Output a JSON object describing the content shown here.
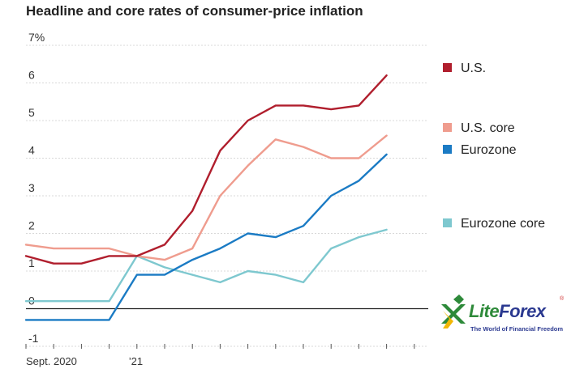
{
  "chart_data": {
    "type": "line",
    "title": "Headline and core rates of consumer-price inflation",
    "y_ticks": [
      "7%",
      "6",
      "5",
      "4",
      "3",
      "2",
      "1",
      "0",
      "-1"
    ],
    "y_tick_values": [
      7,
      6,
      5,
      4,
      3,
      2,
      1,
      0,
      -1
    ],
    "ylim": [
      -1,
      7
    ],
    "x_tick_labels": [
      {
        "label": "Sept. 2020",
        "index": 0
      },
      {
        "label": "’21",
        "index": 4
      }
    ],
    "x_count": 15,
    "grid": true,
    "legend_placement": "right",
    "series": [
      {
        "name": "U.S.",
        "color": "#b01e2d",
        "values": [
          1.4,
          1.2,
          1.2,
          1.4,
          1.4,
          1.7,
          2.6,
          4.2,
          5.0,
          5.4,
          5.4,
          5.3,
          5.4,
          6.2
        ]
      },
      {
        "name": "U.S. core",
        "color": "#ef9c8e",
        "values": [
          1.7,
          1.6,
          1.6,
          1.6,
          1.4,
          1.3,
          1.6,
          3.0,
          3.8,
          4.5,
          4.3,
          4.0,
          4.0,
          4.6
        ]
      },
      {
        "name": "Eurozone",
        "color": "#1b7bc4",
        "values": [
          -0.3,
          -0.3,
          -0.3,
          -0.3,
          0.9,
          0.9,
          1.3,
          1.6,
          2.0,
          1.9,
          2.2,
          3.0,
          3.4,
          4.1
        ]
      },
      {
        "name": "Eurozone core",
        "color": "#7ec8cf",
        "values": [
          0.2,
          0.2,
          0.2,
          0.2,
          1.4,
          1.1,
          0.9,
          0.7,
          1.0,
          0.9,
          0.7,
          1.6,
          1.9,
          2.1
        ]
      }
    ]
  },
  "watermark": {
    "brand_part1": "Lite",
    "brand_part2": "Forex",
    "registered": "®",
    "tagline": "The World of Financial Freedom",
    "colors": {
      "green": "#2e8a3a",
      "blue": "#2b3990"
    }
  }
}
